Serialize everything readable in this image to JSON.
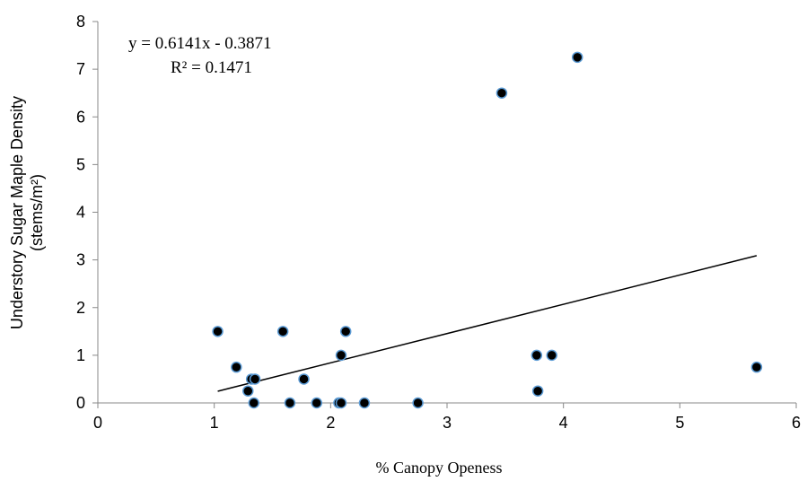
{
  "chart_data": {
    "type": "scatter",
    "xlabel": "% Canopy Openess",
    "ylabel_line1": "Understory Sugar Maple Density",
    "ylabel_line2": "(stems/m²)",
    "xlim": [
      0,
      6
    ],
    "ylim": [
      0,
      8
    ],
    "x_ticks": [
      "0",
      "1",
      "2",
      "3",
      "4",
      "5",
      "6"
    ],
    "y_ticks": [
      "0",
      "1",
      "2",
      "3",
      "4",
      "5",
      "6",
      "7",
      "8"
    ],
    "grid": false,
    "legend": "none",
    "annotation_equation": "y = 0.6141x - 0.3871",
    "annotation_r2": "R² = 0.1471",
    "trendline": {
      "slope": 0.6141,
      "intercept": -0.3871,
      "x_start": 1.03,
      "x_end": 5.66
    },
    "points": [
      {
        "x": 1.03,
        "y": 1.5
      },
      {
        "x": 1.19,
        "y": 0.75
      },
      {
        "x": 1.29,
        "y": 0.25
      },
      {
        "x": 1.32,
        "y": 0.5
      },
      {
        "x": 1.35,
        "y": 0.5
      },
      {
        "x": 1.34,
        "y": 0.0
      },
      {
        "x": 1.59,
        "y": 1.5
      },
      {
        "x": 1.65,
        "y": 0.0
      },
      {
        "x": 1.77,
        "y": 0.5
      },
      {
        "x": 1.88,
        "y": 0.0
      },
      {
        "x": 2.07,
        "y": 0.0
      },
      {
        "x": 2.09,
        "y": 0.0
      },
      {
        "x": 2.09,
        "y": 1.0
      },
      {
        "x": 2.13,
        "y": 1.5
      },
      {
        "x": 2.29,
        "y": 0.0
      },
      {
        "x": 2.75,
        "y": 0.0
      },
      {
        "x": 3.47,
        "y": 6.5
      },
      {
        "x": 3.77,
        "y": 1.0
      },
      {
        "x": 3.78,
        "y": 0.25
      },
      {
        "x": 3.9,
        "y": 1.0
      },
      {
        "x": 4.12,
        "y": 7.25
      },
      {
        "x": 5.66,
        "y": 0.75
      }
    ]
  }
}
